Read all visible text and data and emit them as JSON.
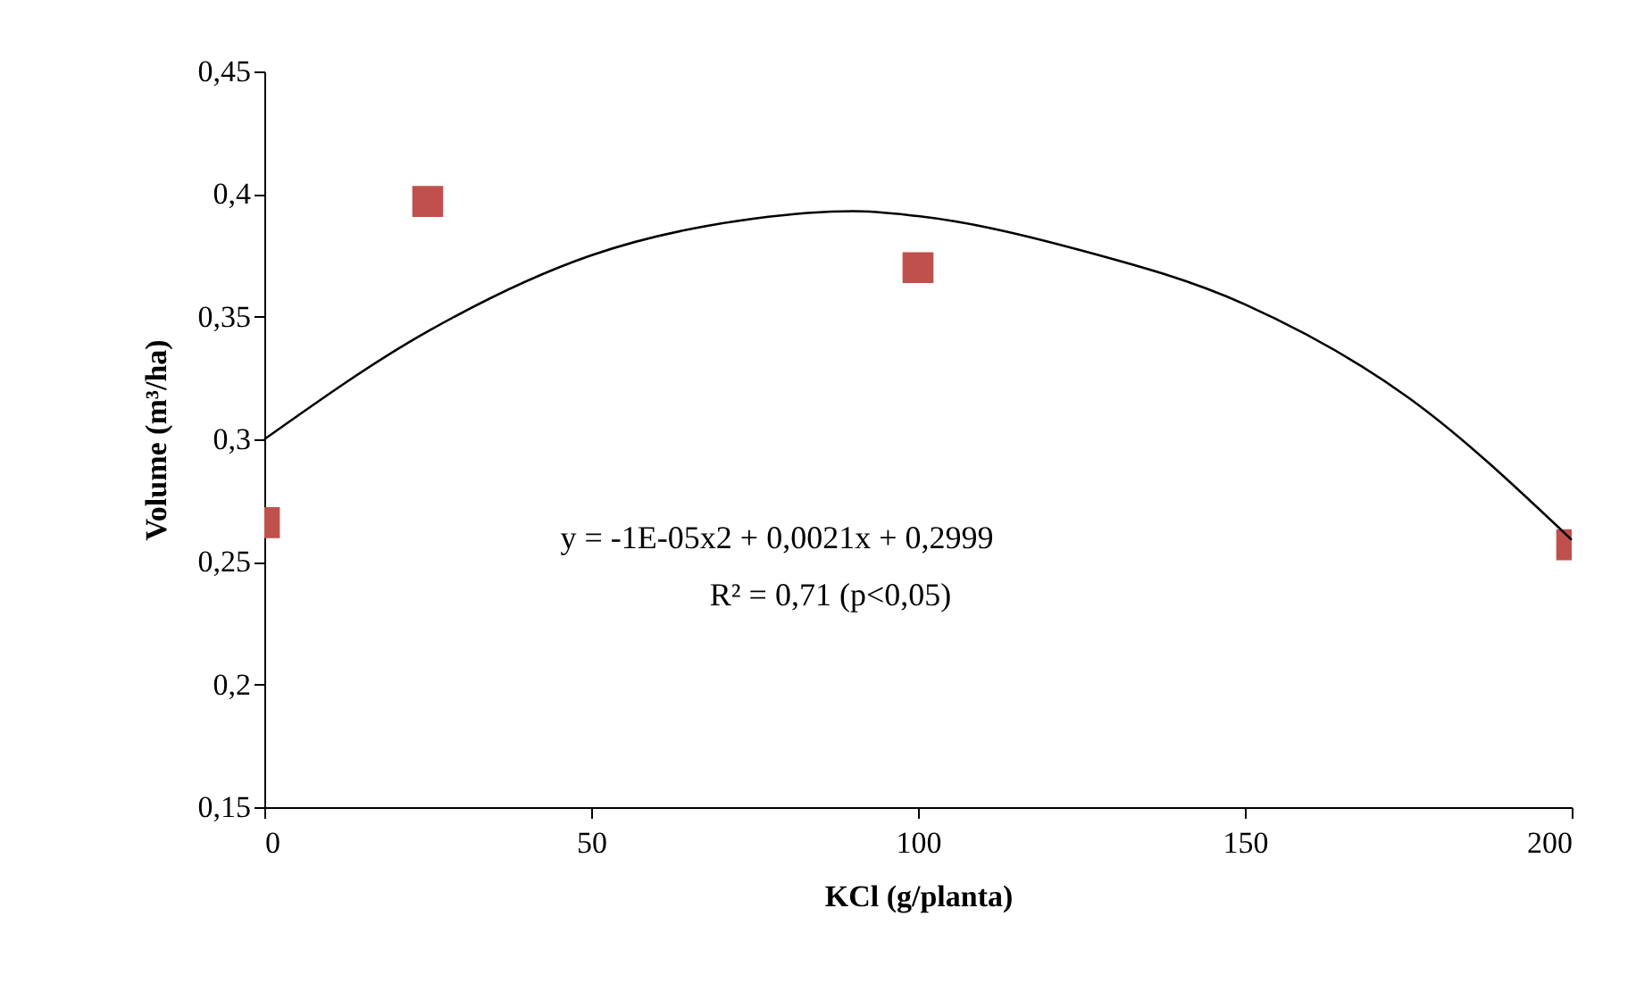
{
  "chart_data": {
    "type": "scatter",
    "xlabel": "KCl (g/planta)",
    "ylabel": "Volume (m³/ha)",
    "marker": "square",
    "grid": false,
    "xlim": [
      0,
      200
    ],
    "xticks": [
      0,
      50,
      100,
      150,
      200
    ],
    "ylim": [
      0.15,
      0.45
    ],
    "yticks": [
      {
        "value": 0.15,
        "label": "0,15"
      },
      {
        "value": 0.2,
        "label": "0,2"
      },
      {
        "value": 0.25,
        "label": "0,25"
      },
      {
        "value": 0.3,
        "label": "0,3"
      },
      {
        "value": 0.35,
        "label": "0,35"
      },
      {
        "value": 0.4,
        "label": "0,4"
      },
      {
        "value": 0.45,
        "label": "0,45"
      }
    ],
    "series": [
      {
        "color": "#c0504d",
        "x": [
          0,
          25,
          100,
          200
        ],
        "values": [
          0.266,
          0.397,
          0.37,
          0.257
        ]
      },
      {
        "type": "line",
        "color": "#000000",
        "marker": "none",
        "line_style": "solid",
        "x": [
          0,
          25,
          50,
          75,
          90,
          100,
          125,
          150,
          175,
          200
        ],
        "values": [
          0.3,
          0.344,
          0.375,
          0.39,
          0.393,
          0.391,
          0.377,
          0.355,
          0.317,
          0.259
        ]
      }
    ],
    "annotations": [
      "y = -1E-05x2 + 0,0021x + 0,2999",
      "R² = 0,71 (p<0,05)"
    ]
  }
}
